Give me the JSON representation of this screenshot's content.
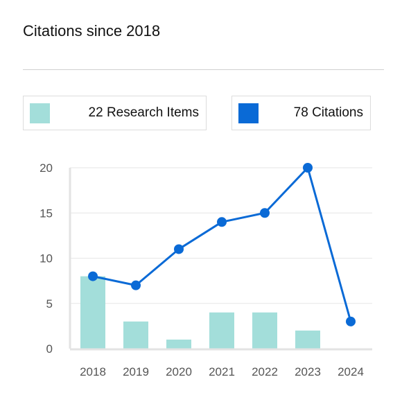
{
  "header": {
    "title": "Citations since 2018"
  },
  "legend": {
    "research_items": {
      "label": "22 Research Items",
      "color": "#a3deda"
    },
    "citations": {
      "label": "78 Citations",
      "color": "#0a6ad6"
    }
  },
  "chart_data": {
    "type": "bar",
    "categories": [
      "2018",
      "2019",
      "2020",
      "2021",
      "2022",
      "2023",
      "2024"
    ],
    "series": [
      {
        "name": "22 Research Items",
        "type": "bar",
        "values": [
          8,
          3,
          1,
          4,
          4,
          2,
          0
        ],
        "color": "#a3deda"
      },
      {
        "name": "78 Citations",
        "type": "line",
        "values": [
          8,
          7,
          11,
          14,
          15,
          20,
          3
        ],
        "color": "#0a6ad6"
      }
    ],
    "title": "Citations since 2018",
    "xlabel": "",
    "ylabel": "",
    "ylim": [
      0,
      20
    ],
    "yticks": [
      0,
      5,
      10,
      15,
      20
    ],
    "grid": true,
    "legend_position": "top"
  }
}
